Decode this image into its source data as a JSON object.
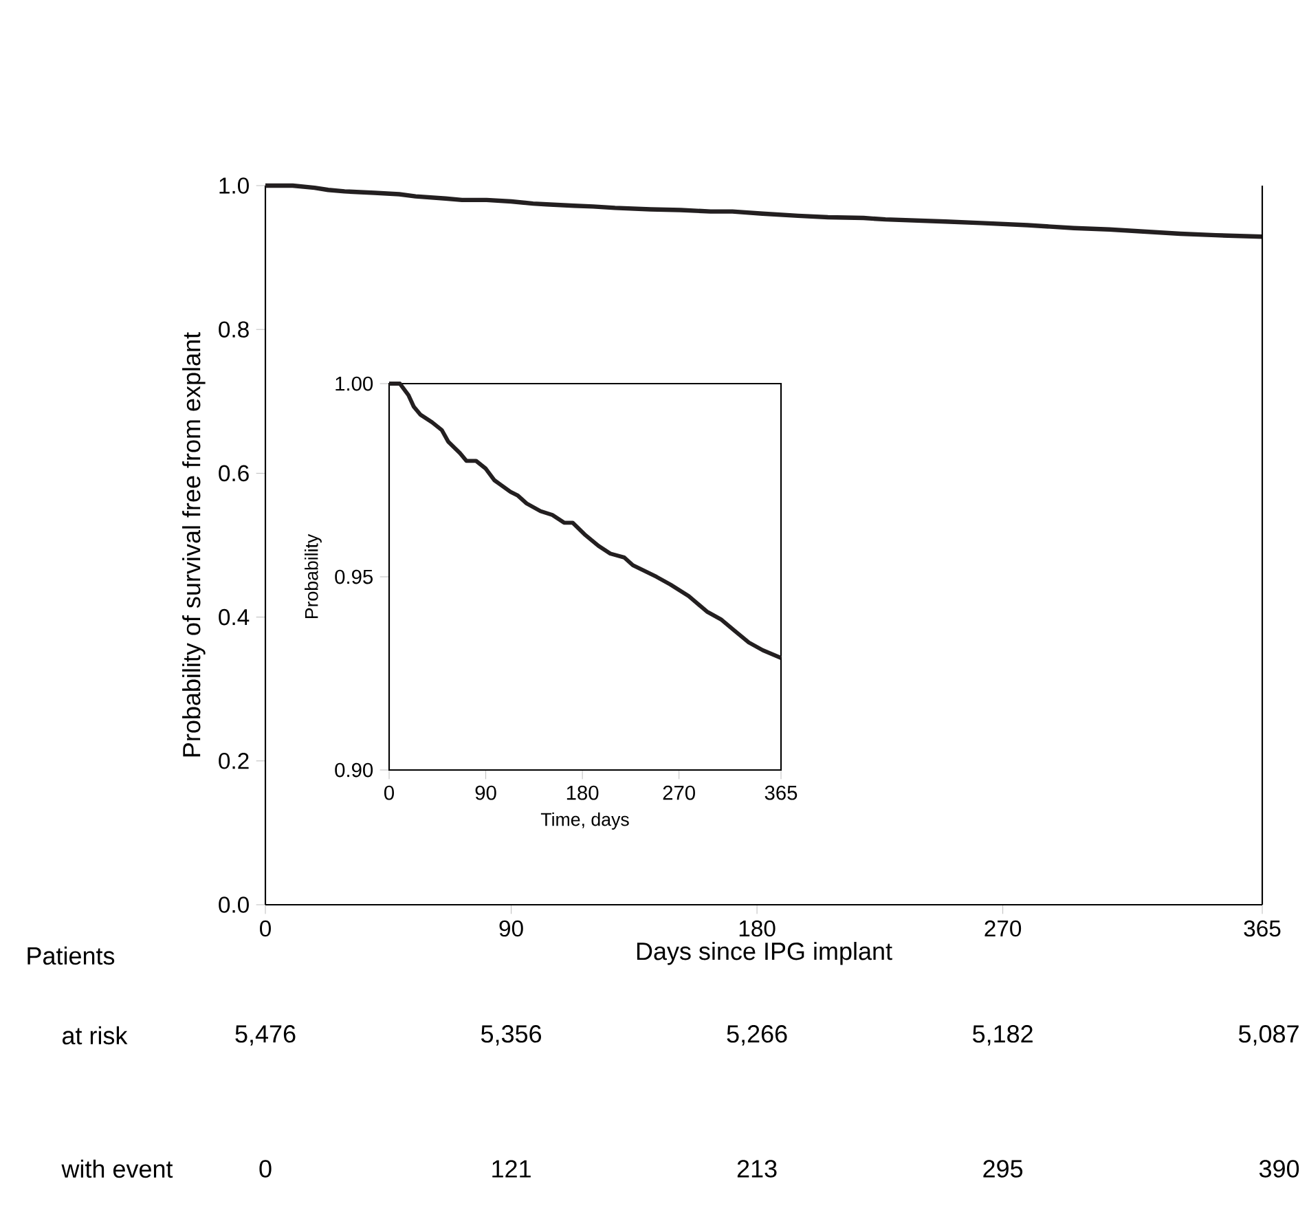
{
  "chart_data": [
    {
      "type": "line",
      "xlabel": "Days since IPG implant",
      "ylabel": "Probability of survival free from explant",
      "x": [
        0,
        10,
        18,
        23,
        29,
        40,
        49,
        55,
        66,
        72,
        81,
        90,
        98,
        103,
        113,
        120,
        128,
        141,
        152,
        163,
        171,
        182,
        195,
        206,
        219,
        227,
        249,
        262,
        279,
        296,
        309,
        322,
        335,
        348,
        365
      ],
      "series": [
        {
          "color": "#231f20",
          "values": [
            1.0,
            1.0,
            0.997,
            0.994,
            0.992,
            0.99,
            0.988,
            0.985,
            0.982,
            0.98,
            0.98,
            0.978,
            0.975,
            0.974,
            0.972,
            0.971,
            0.969,
            0.967,
            0.966,
            0.964,
            0.964,
            0.961,
            0.958,
            0.956,
            0.955,
            0.953,
            0.95,
            0.948,
            0.945,
            0.941,
            0.939,
            0.936,
            0.933,
            0.931,
            0.929
          ]
        }
      ],
      "xlim": [
        0,
        365
      ],
      "ylim": [
        0,
        1
      ],
      "xticks": [
        0,
        90,
        180,
        270,
        365
      ],
      "yticks": [
        {
          "value": 0,
          "label": "0.0"
        },
        {
          "value": 0.2,
          "label": "0.2"
        },
        {
          "value": 0.4,
          "label": "0.4"
        },
        {
          "value": 0.6,
          "label": "0.6"
        },
        {
          "value": 0.8,
          "label": "0.8"
        },
        {
          "value": 1,
          "label": "1.0"
        }
      ],
      "annotations": [
        "Patients",
        "at risk",
        "5,476",
        "5,356",
        "5,266",
        "5,182",
        "5,087",
        "with event",
        "0",
        "121",
        "213",
        "295",
        "390"
      ]
    },
    {
      "type": "line",
      "xlabel": "Time, days",
      "ylabel": "Probability",
      "x": [
        0,
        10,
        18,
        23,
        29,
        40,
        49,
        55,
        66,
        72,
        81,
        90,
        98,
        103,
        113,
        120,
        128,
        141,
        152,
        163,
        171,
        182,
        195,
        206,
        219,
        227,
        249,
        262,
        279,
        296,
        309,
        322,
        335,
        348,
        365
      ],
      "series": [
        {
          "color": "#231f20",
          "values": [
            1.0,
            1.0,
            0.997,
            0.994,
            0.992,
            0.99,
            0.988,
            0.985,
            0.982,
            0.98,
            0.98,
            0.978,
            0.975,
            0.974,
            0.972,
            0.971,
            0.969,
            0.967,
            0.966,
            0.964,
            0.964,
            0.961,
            0.958,
            0.956,
            0.955,
            0.953,
            0.95,
            0.948,
            0.945,
            0.941,
            0.939,
            0.936,
            0.933,
            0.931,
            0.929
          ]
        }
      ],
      "xlim": [
        0,
        365
      ],
      "ylim": [
        0.9,
        1
      ],
      "xticks": [
        0,
        90,
        180,
        270,
        365
      ],
      "yticks": [
        {
          "value": 0.9,
          "label": "0.90"
        },
        {
          "value": 0.95,
          "label": "0.95"
        },
        {
          "value": 1,
          "label": "1.00"
        }
      ]
    }
  ]
}
